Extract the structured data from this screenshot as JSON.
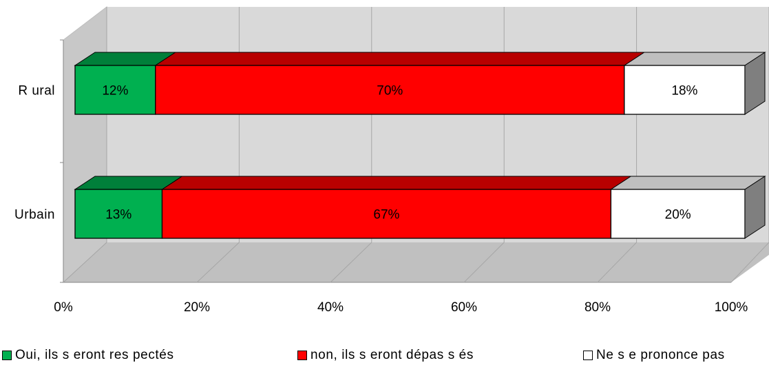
{
  "chart_data": {
    "type": "bar",
    "orientation": "horizontal",
    "stacked": "100%",
    "title": "",
    "categories": [
      "Rural",
      "Urbain"
    ],
    "category_labels": [
      "R ural",
      "Urbain"
    ],
    "series": [
      {
        "name": "Oui, ils seront respectés",
        "legend_label": "Oui, ils s eront res pectés",
        "color": "#00b050",
        "values": [
          12,
          13
        ]
      },
      {
        "name": "non, ils seront dépassés",
        "legend_label": "non, ils s eront dépas s és",
        "color": "#ff0000",
        "values": [
          70,
          67
        ]
      },
      {
        "name": "Ne se prononce pas",
        "legend_label": "Ne s e prononce pas",
        "color": "#ffffff",
        "values": [
          18,
          20
        ]
      }
    ],
    "xlim": [
      0,
      100
    ],
    "x_ticks": [
      "0%",
      "20%",
      "40%",
      "60%",
      "80%",
      "100%"
    ],
    "grid": true,
    "legend_position": "bottom",
    "three_d": true
  }
}
